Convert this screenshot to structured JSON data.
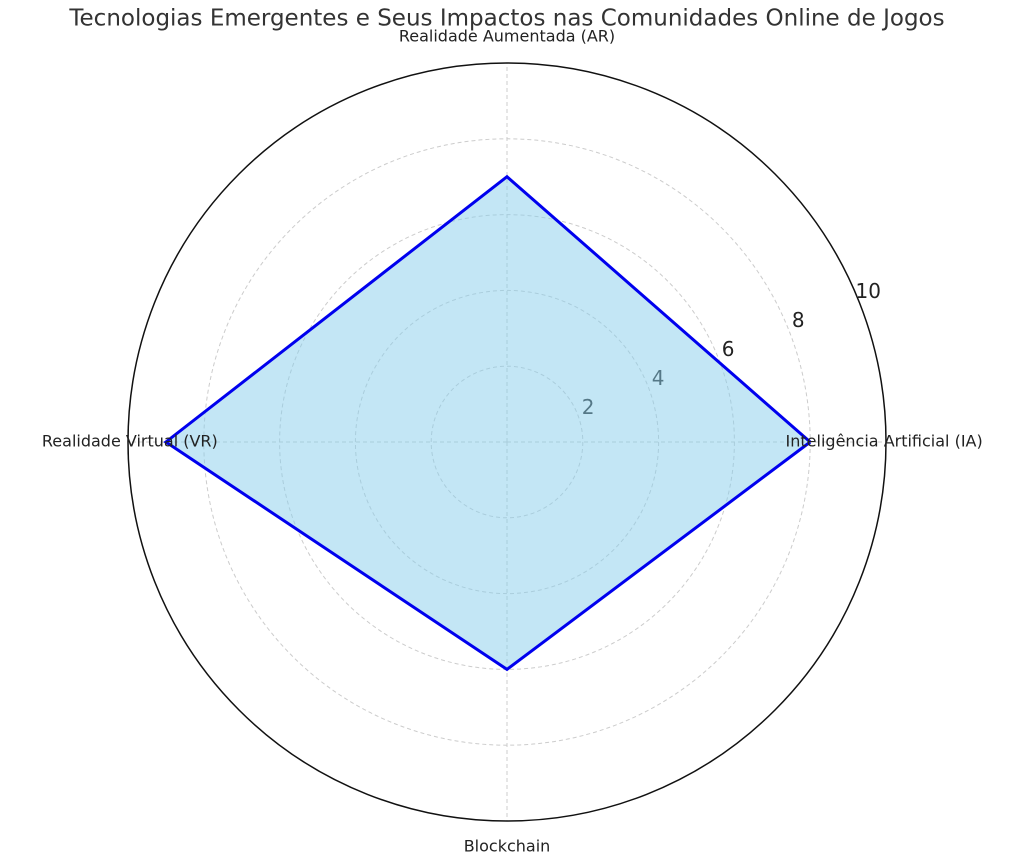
{
  "chart_data": {
    "type": "radar",
    "title": "Tecnologias Emergentes e Seus Impactos nas Comunidades Online de Jogos",
    "categories": [
      "Inteligência Artificial (IA)",
      "Realidade Aumentada (AR)",
      "Realidade Virtual (VR)",
      "Blockchain"
    ],
    "values": [
      8,
      7,
      9,
      6
    ],
    "rlim": [
      0,
      10
    ],
    "rticks": [
      2,
      4,
      6,
      8,
      10
    ],
    "color": "#0000ee",
    "fill": "#87ceeb",
    "grid": true
  }
}
